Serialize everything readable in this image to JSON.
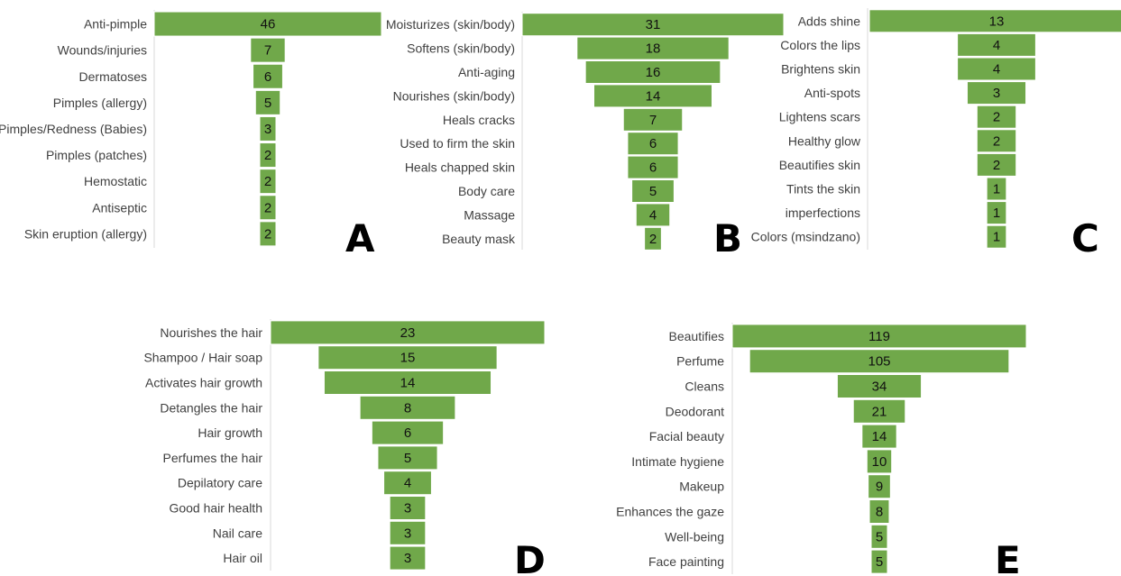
{
  "colors": {
    "bar": "#70a84a",
    "bar_stroke": "#ffffff",
    "axis": "#d9d9d9"
  },
  "chart_data": [
    {
      "type": "bar",
      "orientation": "horizontal-centered",
      "panel_label": "A",
      "categories": [
        "Anti-pimple",
        "Wounds/injuries",
        "Dermatoses",
        "Pimples (allergy)",
        "Pimples/Redness (Babies)",
        "Pimples (patches)",
        "Hemostatic",
        "Antiseptic",
        "Skin eruption (allergy)"
      ],
      "values": [
        46,
        7,
        6,
        5,
        3,
        2,
        2,
        2,
        2
      ],
      "grid": false
    },
    {
      "type": "bar",
      "orientation": "horizontal-centered",
      "panel_label": "B",
      "categories": [
        "Moisturizes (skin/body)",
        "Softens (skin/body)",
        "Anti-aging",
        "Nourishes (skin/body)",
        "Heals cracks",
        "Used to firm the skin",
        "Heals chapped skin",
        "Body care",
        "Massage",
        "Beauty mask"
      ],
      "values": [
        31,
        18,
        16,
        14,
        7,
        6,
        6,
        5,
        4,
        2
      ],
      "grid": false
    },
    {
      "type": "bar",
      "orientation": "horizontal-centered",
      "panel_label": "C",
      "categories": [
        "Adds shine",
        "Colors the lips",
        "Brightens skin",
        "Anti-spots",
        "Lightens scars",
        "Healthy glow",
        "Beautifies skin",
        "Tints the skin",
        "imperfections",
        "Colors (msindzano)"
      ],
      "values": [
        13,
        4,
        4,
        3,
        2,
        2,
        2,
        1,
        1,
        1
      ],
      "grid": false
    },
    {
      "type": "bar",
      "orientation": "horizontal-centered",
      "panel_label": "D",
      "categories": [
        "Nourishes the hair",
        "Shampoo / Hair soap",
        "Activates hair growth",
        "Detangles the hair",
        "Hair growth",
        "Perfumes the hair",
        "Depilatory care",
        "Good hair health",
        "Nail care",
        "Hair oil"
      ],
      "values": [
        23,
        15,
        14,
        8,
        6,
        5,
        4,
        3,
        3,
        3
      ],
      "grid": false
    },
    {
      "type": "bar",
      "orientation": "horizontal-centered",
      "panel_label": "E",
      "categories": [
        "Beautifies",
        "Perfume",
        "Cleans",
        "Deodorant",
        "Facial beauty",
        "Intimate hygiene",
        "Makeup",
        "Enhances the gaze",
        "Well-being",
        "Face painting"
      ],
      "values": [
        119,
        105,
        34,
        21,
        14,
        10,
        9,
        8,
        5,
        5
      ],
      "grid": false
    }
  ]
}
